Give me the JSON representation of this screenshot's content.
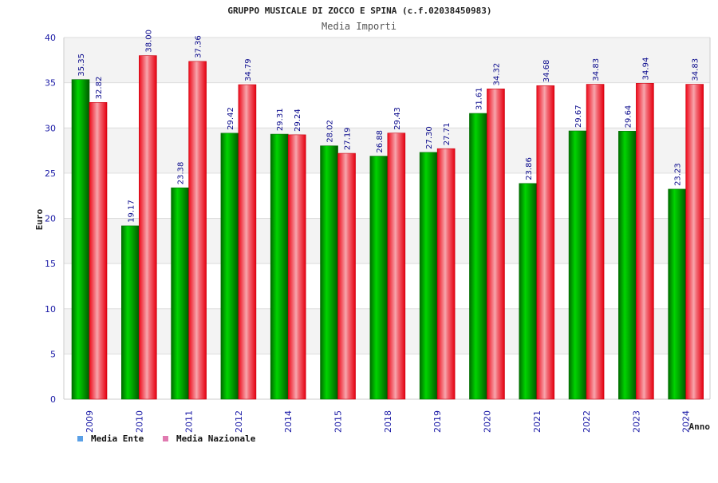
{
  "chart_data": {
    "type": "bar",
    "title": "GRUPPO MUSICALE DI ZOCCO E SPINA (c.f.02038450983)",
    "subtitle": "Media Importi",
    "xlabel": "Anno",
    "ylabel": "Euro",
    "ylim": [
      0,
      40
    ],
    "yticks": [
      0,
      5,
      10,
      15,
      20,
      25,
      30,
      35,
      40
    ],
    "categories": [
      "2009",
      "2010",
      "2011",
      "2012",
      "2014",
      "2015",
      "2018",
      "2019",
      "2020",
      "2021",
      "2022",
      "2023",
      "2024"
    ],
    "series": [
      {
        "name": "Media Ente",
        "color": "#00bb00",
        "legend_color": "#5aa0e6",
        "values": [
          35.35,
          19.17,
          23.38,
          29.42,
          29.31,
          28.02,
          26.88,
          27.3,
          31.61,
          23.86,
          29.67,
          29.64,
          23.23
        ],
        "labels": [
          "35.35",
          "19.17",
          "23.38",
          "29.42",
          "29.31",
          "28.02",
          "26.88",
          "27.30",
          "31.61",
          "23.86",
          "29.67",
          "29.64",
          "23.23"
        ]
      },
      {
        "name": "Media Nazionale",
        "color": "#ee1122",
        "legend_color": "#e07ab0",
        "values": [
          32.82,
          38.0,
          37.36,
          34.79,
          29.24,
          27.19,
          29.43,
          27.71,
          34.32,
          34.68,
          34.83,
          34.94,
          34.83
        ],
        "labels": [
          "32.82",
          "38.00",
          "37.36",
          "34.79",
          "29.24",
          "27.19",
          "29.43",
          "27.71",
          "34.32",
          "34.68",
          "34.83",
          "34.94",
          "34.83"
        ]
      }
    ],
    "grid": true,
    "legend_position": "bottom-left"
  }
}
